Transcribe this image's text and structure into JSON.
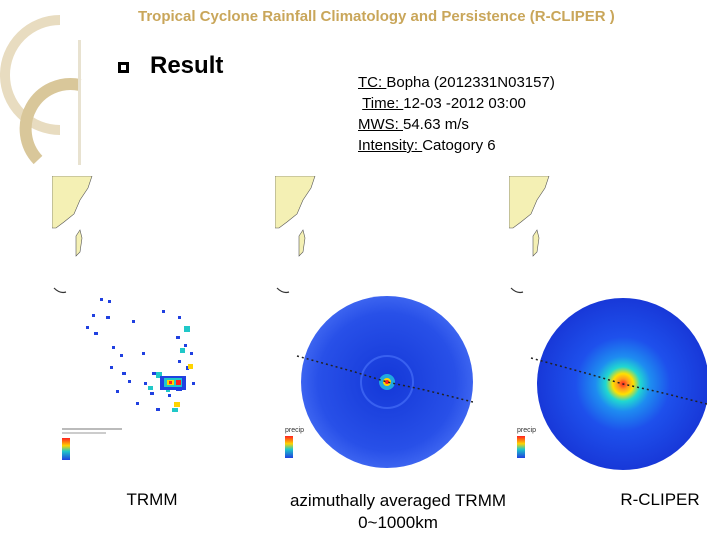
{
  "slide": {
    "title": "Tropical Cyclone Rainfall Climatology and Persistence (R-CLIPER )",
    "heading": "Result"
  },
  "storm": {
    "tc_label": "TC: ",
    "tc_value": " Bopha (2012331N03157)",
    "time_label": "Time: ",
    "time_value": "12-03 -2012   03:00",
    "mws_label": "MWS: ",
    "mws_value": " 54.63 m/s",
    "intensity_label": "Intensity: ",
    "intensity_value": "Catogory 6"
  },
  "panels": [
    {
      "caption": "TRMM",
      "legend_label": "precip"
    },
    {
      "caption_line1": "azimuthally averaged TRMM",
      "caption_line2": "0~1000km",
      "legend_label": "precip"
    },
    {
      "caption": "R-CLIPER",
      "legend_label": "precip"
    }
  ],
  "colors": {
    "title": "#c9a65a",
    "land": "#f4f0b4",
    "field": "#2850e8",
    "ring": "#c9a65a"
  }
}
